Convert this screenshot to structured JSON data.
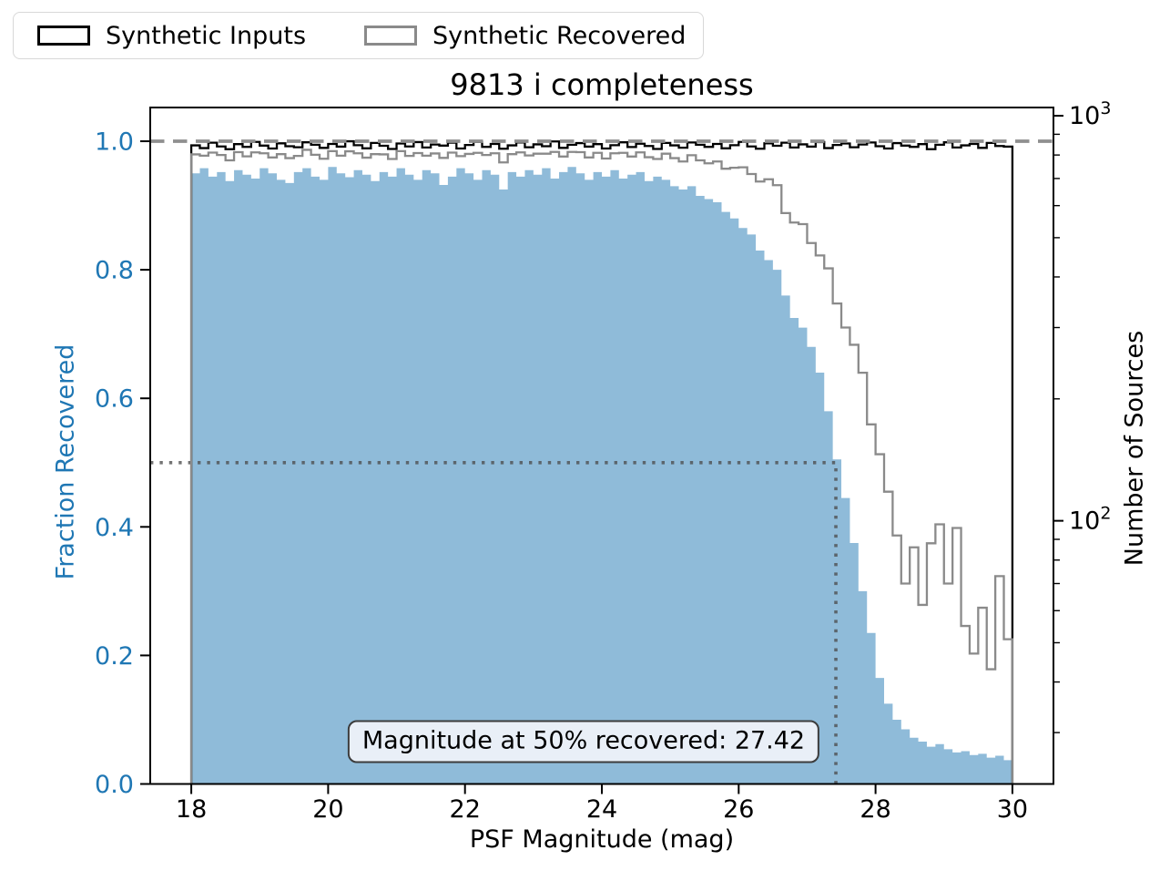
{
  "figure": {
    "title": "9813 i completeness",
    "background": "#ffffff"
  },
  "legend": {
    "items": [
      {
        "label": "Synthetic Inputs",
        "color": "#000000"
      },
      {
        "label": "Synthetic Recovered",
        "color": "#8a8a8a"
      }
    ]
  },
  "axes": {
    "x": {
      "label": "PSF Magnitude (mag)",
      "ticks": [
        {
          "v": 18,
          "label": "18"
        },
        {
          "v": 20,
          "label": "20"
        },
        {
          "v": 22,
          "label": "22"
        },
        {
          "v": 24,
          "label": "24"
        },
        {
          "v": 26,
          "label": "26"
        },
        {
          "v": 28,
          "label": "28"
        },
        {
          "v": 30,
          "label": "30"
        }
      ]
    },
    "y_left": {
      "label": "Fraction Recovered",
      "color": "#1f77b4",
      "ticks": [
        {
          "v": 0.0,
          "label": "0.0"
        },
        {
          "v": 0.2,
          "label": "0.2"
        },
        {
          "v": 0.4,
          "label": "0.4"
        },
        {
          "v": 0.6,
          "label": "0.6"
        },
        {
          "v": 0.8,
          "label": "0.8"
        },
        {
          "v": 1.0,
          "label": "1.0"
        }
      ]
    },
    "y_right": {
      "label": "Number of Sources",
      "scale": "log",
      "major_ticks": [
        {
          "v": 1000,
          "base": "10",
          "exp": "3"
        },
        {
          "v": 100,
          "base": "10",
          "exp": "2"
        }
      ],
      "minor_ticks": [
        900,
        800,
        700,
        600,
        500,
        400,
        300,
        200,
        90,
        80,
        70,
        60,
        50,
        40,
        30,
        20
      ]
    }
  },
  "annotation": {
    "text": "Magnitude at 50% recovered: 27.42"
  },
  "chart_data": {
    "type": "bar",
    "subtype": "completeness-histogram",
    "title": "9813 i completeness",
    "xlabel": "PSF Magnitude (mag)",
    "ylabel_left": "Fraction Recovered",
    "ylabel_right": "Number of Sources",
    "bin_start": 18.0,
    "bin_width": 0.125,
    "n_bins": 96,
    "xlim": [
      17.4,
      30.6
    ],
    "ylim_fraction": [
      0.0,
      1.0525
    ],
    "ylim_counts_log": [
      22.4,
      1048
    ],
    "grid": false,
    "legend_position": "upper-left-outside",
    "reference_lines": {
      "dashed_fraction": 1.0,
      "dashed_color": "#8f8f8f",
      "dotted_fraction": 0.5,
      "dotted_magnitude": 27.42,
      "dotted_color": "#4d4d4d"
    },
    "series": [
      {
        "name": "Fraction Recovered",
        "axis": "left",
        "style": "filled-step",
        "color": "#8fbbd9",
        "values": [
          0.95,
          0.958,
          0.945,
          0.952,
          0.938,
          0.955,
          0.948,
          0.942,
          0.958,
          0.95,
          0.94,
          0.935,
          0.952,
          0.958,
          0.945,
          0.94,
          0.96,
          0.95,
          0.944,
          0.955,
          0.948,
          0.938,
          0.952,
          0.945,
          0.958,
          0.948,
          0.94,
          0.955,
          0.95,
          0.932,
          0.945,
          0.958,
          0.95,
          0.94,
          0.955,
          0.948,
          0.925,
          0.952,
          0.945,
          0.955,
          0.948,
          0.958,
          0.942,
          0.952,
          0.96,
          0.95,
          0.94,
          0.952,
          0.945,
          0.955,
          0.942,
          0.948,
          0.952,
          0.938,
          0.945,
          0.94,
          0.93,
          0.925,
          0.93,
          0.915,
          0.91,
          0.905,
          0.89,
          0.88,
          0.865,
          0.855,
          0.83,
          0.815,
          0.8,
          0.76,
          0.725,
          0.71,
          0.68,
          0.64,
          0.58,
          0.505,
          0.445,
          0.375,
          0.3,
          0.235,
          0.165,
          0.125,
          0.1,
          0.085,
          0.072,
          0.066,
          0.058,
          0.062,
          0.054,
          0.049,
          0.051,
          0.045,
          0.047,
          0.041,
          0.044,
          0.037
        ]
      },
      {
        "name": "Synthetic Inputs",
        "axis": "right",
        "style": "step",
        "color": "#000000",
        "values": [
          845,
          832,
          858,
          840,
          827,
          851,
          838,
          862,
          844,
          830,
          855,
          841,
          836,
          860,
          848,
          833,
          852,
          839,
          865,
          846,
          831,
          857,
          843,
          828,
          854,
          840,
          861,
          835,
          849,
          844,
          858,
          830,
          847,
          862,
          838,
          852,
          829,
          845,
          859,
          836,
          850,
          841,
          864,
          833,
          848,
          856,
          839,
          851,
          830,
          846,
          860,
          837,
          853,
          842,
          828,
          857,
          845,
          834,
          859,
          848,
          838,
          852,
          831,
          846,
          862,
          840,
          829,
          855,
          843,
          858,
          835,
          850,
          839,
          861,
          832,
          847,
          854,
          836,
          849,
          859,
          841,
          830,
          856,
          844,
          838,
          851,
          827,
          848,
          860,
          835,
          845,
          852,
          833,
          857,
          842,
          839
        ]
      },
      {
        "name": "Synthetic Recovered",
        "axis": "right",
        "style": "step",
        "color": "#8a8a8a",
        "values": [
          803,
          797,
          811,
          800,
          776,
          813,
          794,
          812,
          808,
          789,
          804,
          786,
          796,
          824,
          801,
          783,
          818,
          797,
          817,
          808,
          788,
          804,
          803,
          782,
          818,
          796,
          809,
          797,
          807,
          787,
          811,
          795,
          805,
          810,
          800,
          808,
          767,
          804,
          812,
          798,
          806,
          806,
          814,
          793,
          814,
          813,
          789,
          810,
          784,
          808,
          810,
          793,
          812,
          790,
          782,
          806,
          786,
          771,
          799,
          776,
          763,
          771,
          740,
          744,
          746,
          718,
          688,
          697,
          674,
          575,
          545,
          540,
          485,
          452,
          420,
          344,
          300,
          272,
          232,
          173,
          146,
          118,
          92,
          70,
          86,
          62,
          88,
          98,
          70,
          96,
          55,
          47,
          61,
          43,
          73,
          51
        ]
      }
    ]
  }
}
